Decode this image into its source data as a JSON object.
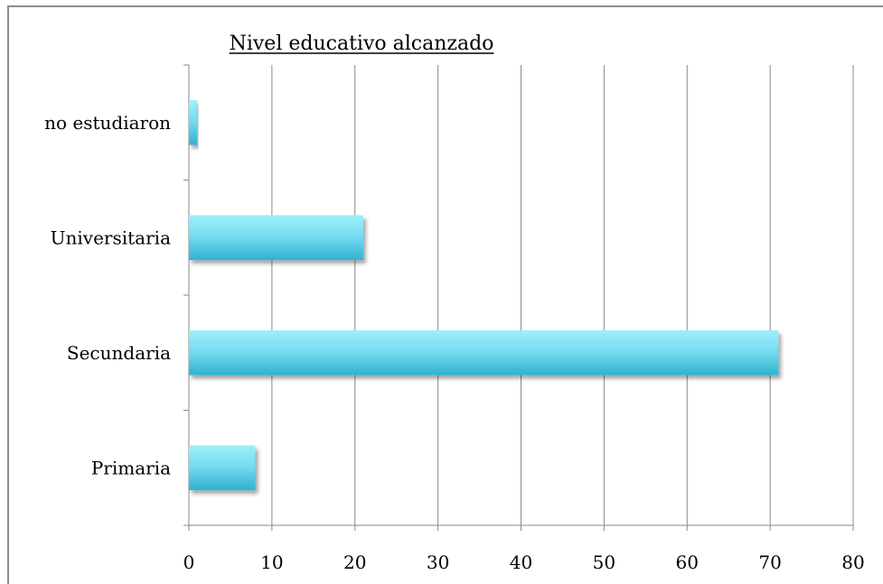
{
  "chart_data": {
    "type": "bar",
    "orientation": "horizontal",
    "title": "Nivel educativo alcanzado",
    "categories": [
      "Primaria",
      "Secundaria",
      "Universitaria",
      "no estudiaron"
    ],
    "values": [
      8,
      71,
      21,
      1
    ],
    "xlim": [
      0,
      80
    ],
    "xticks": [
      0,
      10,
      20,
      30,
      40,
      50,
      60,
      70,
      80
    ],
    "xlabel": "",
    "ylabel": "",
    "grid": true,
    "legend": "none",
    "bar_color_top": "#9df0fb",
    "bar_color_bottom": "#2fb2cf",
    "gridline_color": "#8a8a8a"
  }
}
